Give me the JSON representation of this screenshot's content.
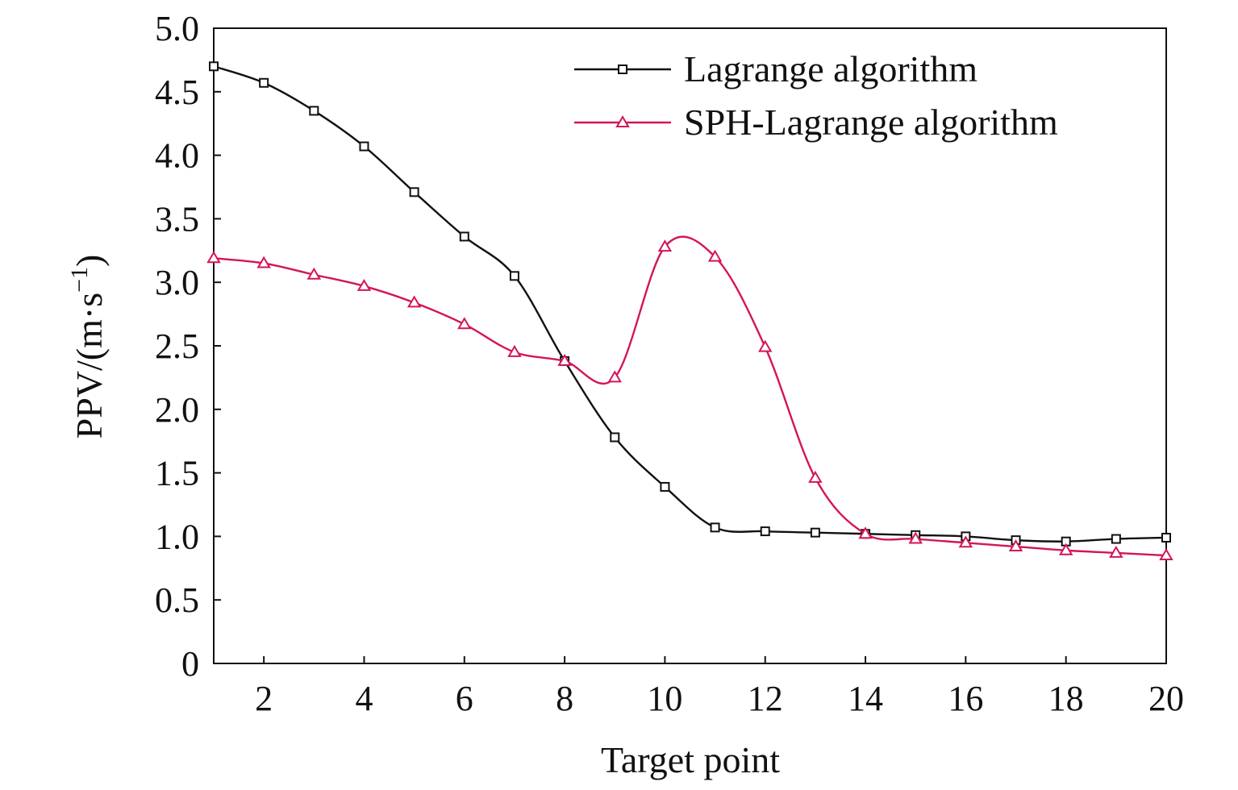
{
  "chart_data": {
    "type": "line",
    "title": "",
    "xlabel": "Target point",
    "ylabel": "PPV/(m·s",
    "ylabel_sup": "−1",
    "ylabel_end": ")",
    "xlim": [
      1,
      20
    ],
    "ylim": [
      0,
      5.0
    ],
    "x_ticks": [
      2,
      4,
      6,
      8,
      10,
      12,
      14,
      16,
      18,
      20
    ],
    "x_tick_labels": [
      "2",
      "4",
      "6",
      "8",
      "10",
      "12",
      "14",
      "16",
      "18",
      "20"
    ],
    "y_ticks": [
      0,
      0.5,
      1.0,
      1.5,
      2.0,
      2.5,
      3.0,
      3.5,
      4.0,
      4.5,
      5.0
    ],
    "y_tick_labels": [
      "0",
      "0.5",
      "1.0",
      "1.5",
      "2.0",
      "2.5",
      "3.0",
      "3.5",
      "4.0",
      "4.5",
      "5.0"
    ],
    "grid": false,
    "legend_position": "top-right",
    "x": [
      1,
      2,
      3,
      4,
      5,
      6,
      7,
      8,
      9,
      10,
      11,
      12,
      13,
      14,
      15,
      16,
      17,
      18,
      19,
      20
    ],
    "series": [
      {
        "name": "Lagrange algorithm",
        "color": "#111111",
        "marker": "square",
        "values": [
          4.7,
          4.57,
          4.35,
          4.07,
          3.71,
          3.36,
          3.05,
          2.38,
          1.78,
          1.39,
          1.07,
          1.04,
          1.03,
          1.02,
          1.01,
          1.0,
          0.97,
          0.96,
          0.98,
          0.99
        ]
      },
      {
        "name": "SPH-Lagrange algorithm",
        "color": "#d4145a",
        "marker": "triangle",
        "values": [
          3.19,
          3.15,
          3.06,
          2.97,
          2.84,
          2.67,
          2.45,
          2.38,
          2.25,
          3.28,
          3.2,
          2.49,
          1.46,
          1.02,
          0.98,
          0.95,
          0.92,
          0.89,
          0.87,
          0.85
        ]
      }
    ]
  }
}
